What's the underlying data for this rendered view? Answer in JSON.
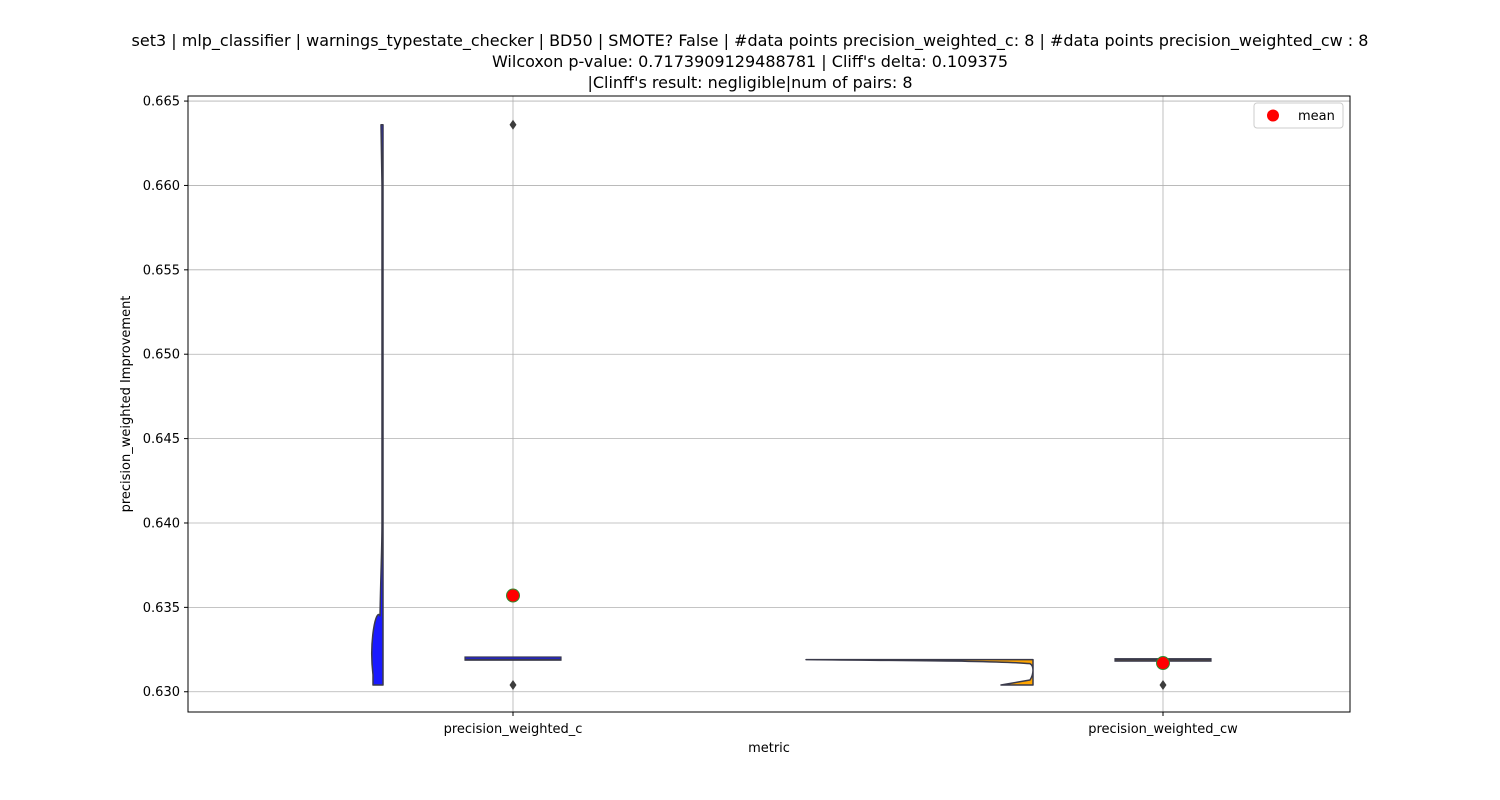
{
  "chart_data": {
    "type": "violin",
    "title_lines": [
      "set3 | mlp_classifier | warnings_typestate_checker | BD50 | SMOTE? False | #data points precision_weighted_c: 8 | #data points precision_weighted_cw : 8",
      "Wilcoxon p-value: 0.7173909129488781 | Cliff's delta: 0.109375",
      "|Clinff's result: negligible|num of pairs: 8"
    ],
    "xlabel": "metric",
    "ylabel": "precision_weighted Improvement",
    "ylim": [
      0.6288,
      0.6653
    ],
    "yticks": [
      0.63,
      0.635,
      0.64,
      0.645,
      0.65,
      0.655,
      0.66,
      0.665
    ],
    "ytick_labels": [
      "0.630",
      "0.635",
      "0.640",
      "0.645",
      "0.650",
      "0.655",
      "0.660",
      "0.665"
    ],
    "categories": [
      "precision_weighted_c",
      "precision_weighted_cw"
    ],
    "grid": true,
    "legend": {
      "label": "mean",
      "placement": "top-right",
      "marker_color": "#ff0000"
    },
    "series": [
      {
        "category": "precision_weighted_c",
        "color": "#1a1aff",
        "violin_min": 0.6304,
        "violin_max": 0.6636,
        "box_q1": 0.6319,
        "box_median": 0.6319,
        "box_q3": 0.632,
        "outliers": [
          0.6636,
          0.6304
        ],
        "mean": 0.6357
      },
      {
        "category": "precision_weighted_cw",
        "color": "#ffa500",
        "violin_min": 0.6304,
        "violin_max": 0.6319,
        "box_q1": 0.6319,
        "box_median": 0.6319,
        "box_q3": 0.6319,
        "outliers": [
          0.6304
        ],
        "mean": 0.6317
      }
    ]
  }
}
